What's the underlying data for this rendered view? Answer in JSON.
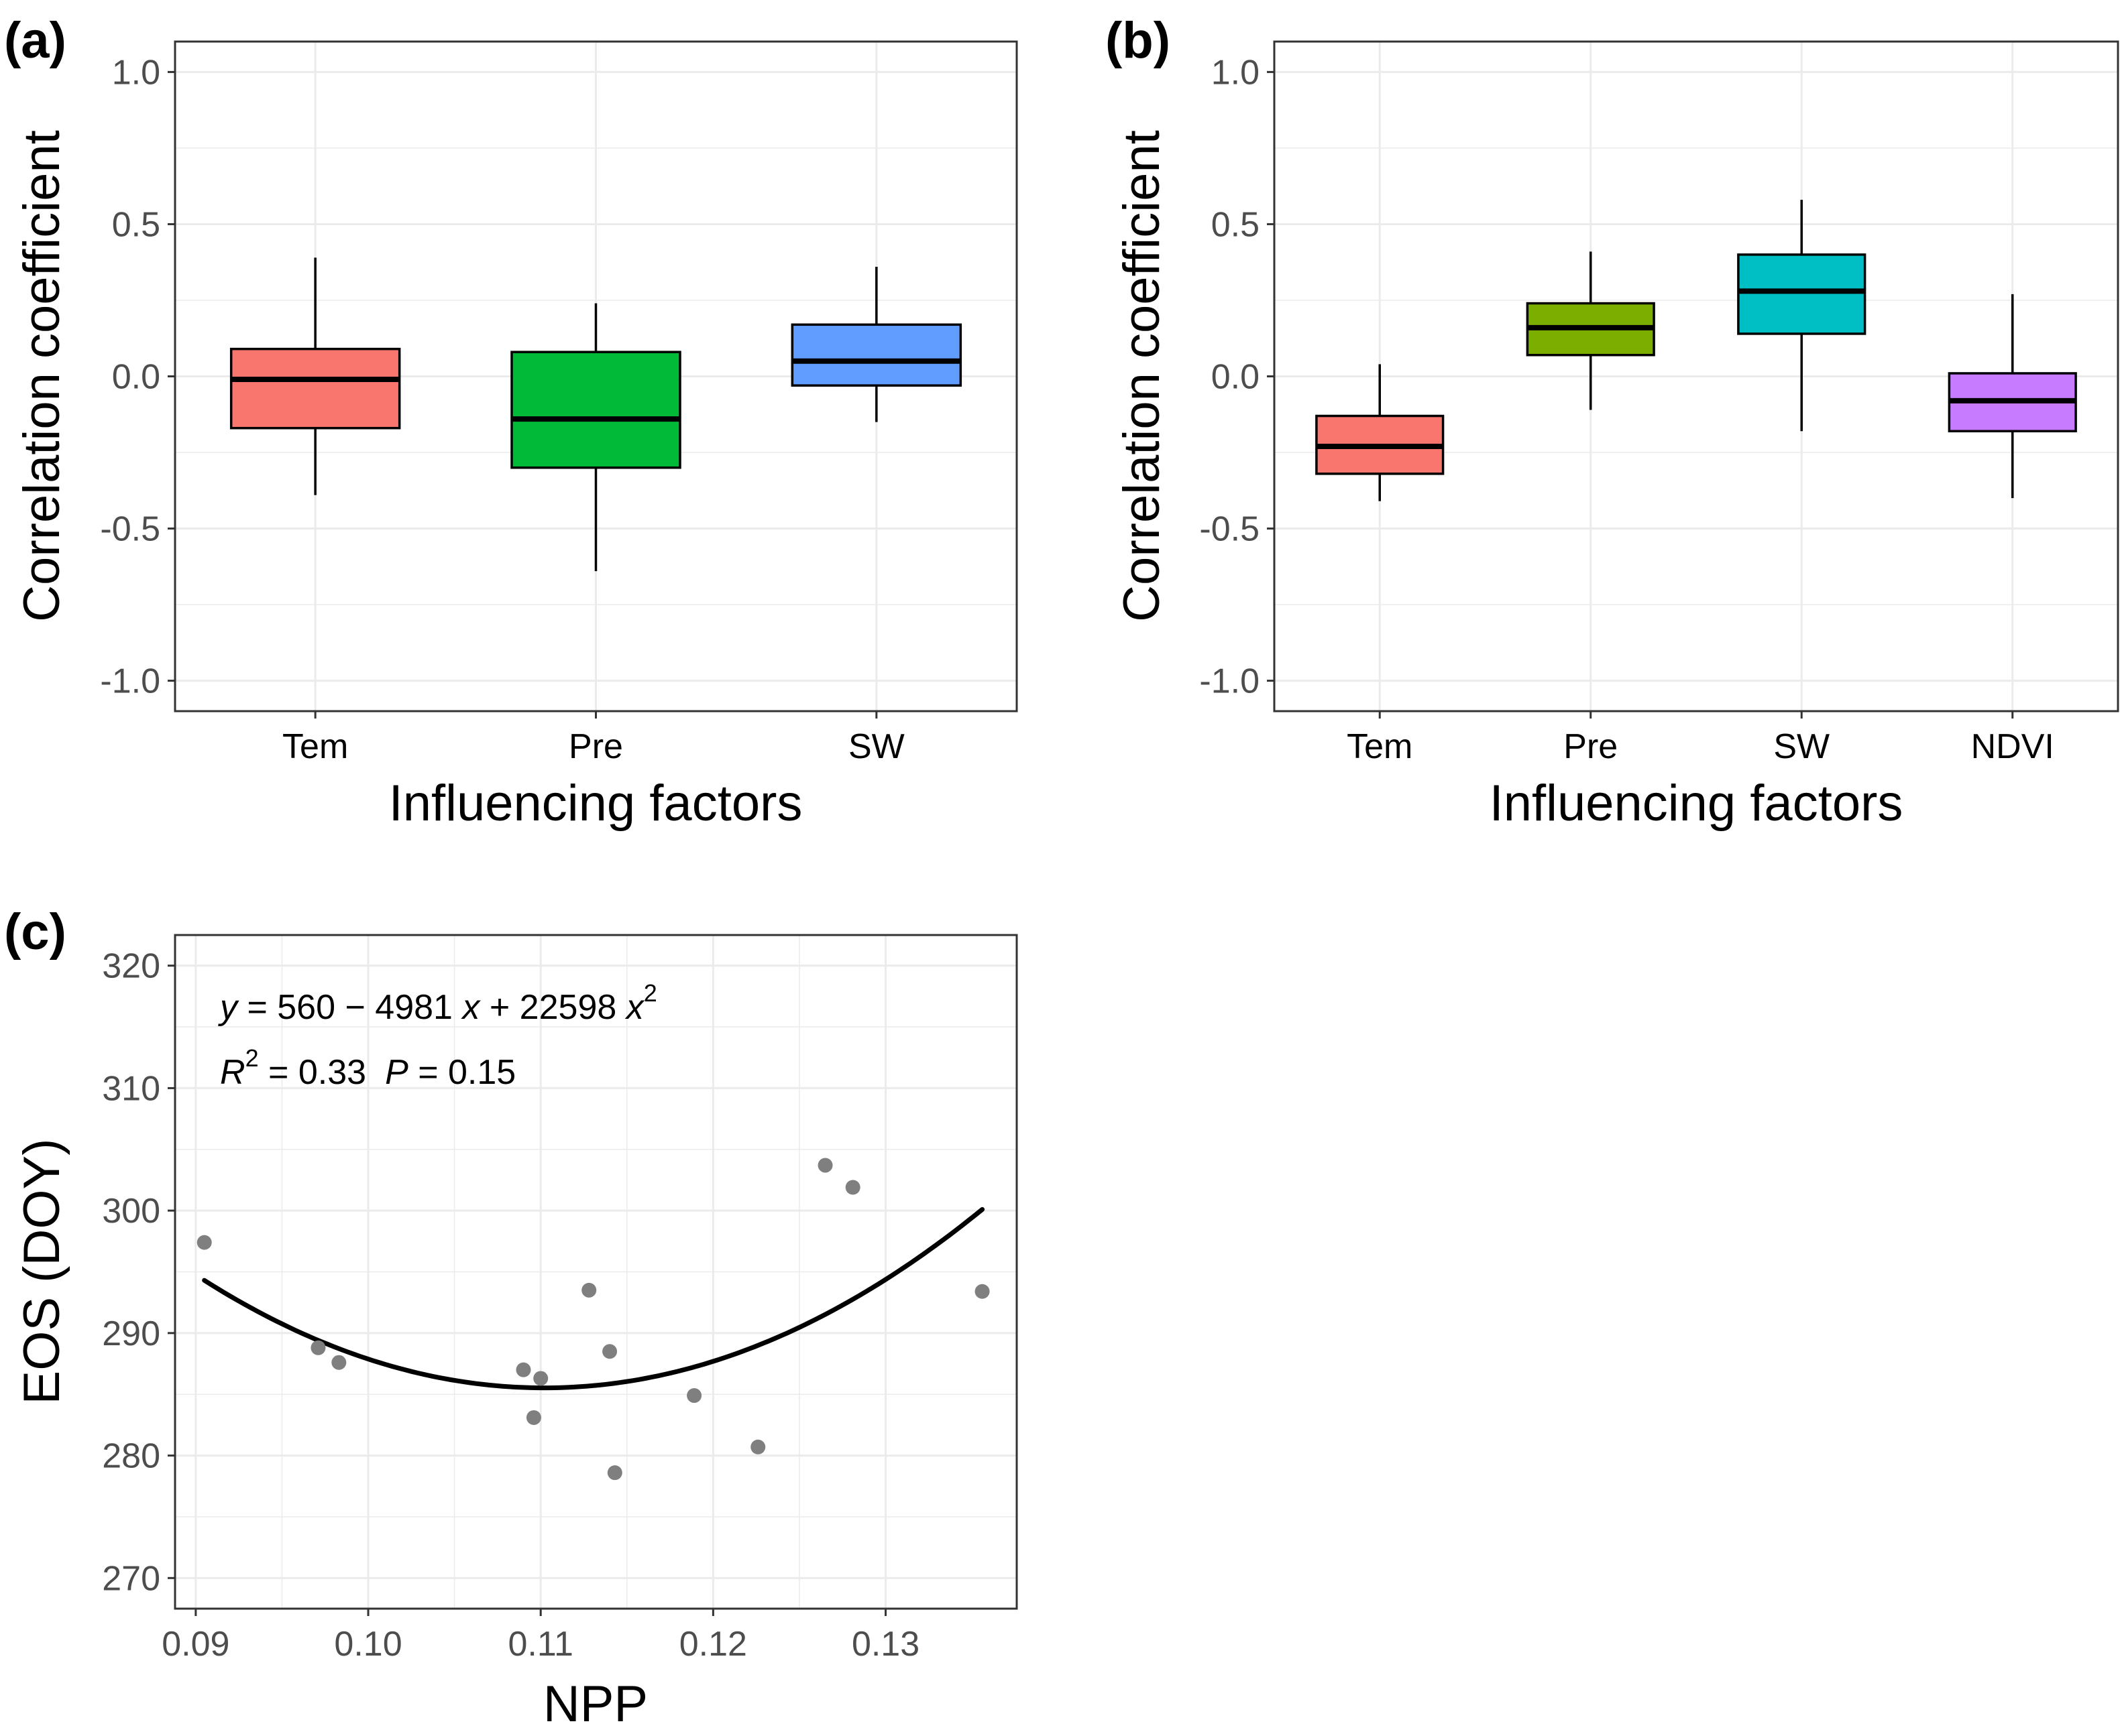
{
  "colors": {
    "grid": "#ebebeb",
    "frame": "#333333",
    "points": "#7f7f7f",
    "fit_line": "#000000"
  },
  "chart_data": [
    {
      "panel_label": "(a)",
      "type": "box",
      "title": "",
      "xlabel": "Influencing factors",
      "ylabel": "Correlation coefficient",
      "ylim": [
        -1.1,
        1.1
      ],
      "yticks": [
        -1.0,
        -0.5,
        0.0,
        0.5,
        1.0
      ],
      "ytick_labels": [
        "-1.0",
        "-0.5",
        "0.0",
        "0.5",
        "1.0"
      ],
      "categories": [
        "Tem",
        "Pre",
        "SW"
      ],
      "boxes": [
        {
          "category": "Tem",
          "min": -0.39,
          "q1": -0.17,
          "median": -0.01,
          "q3": 0.09,
          "max": 0.39,
          "color": "#f8766d"
        },
        {
          "category": "Pre",
          "min": -0.64,
          "q1": -0.3,
          "median": -0.14,
          "q3": 0.08,
          "max": 0.24,
          "color": "#00ba38"
        },
        {
          "category": "SW",
          "min": -0.15,
          "q1": -0.03,
          "median": 0.05,
          "q3": 0.17,
          "max": 0.36,
          "color": "#619cff"
        }
      ]
    },
    {
      "panel_label": "(b)",
      "type": "box",
      "title": "",
      "xlabel": "Influencing factors",
      "ylabel": "Correlation coefficient",
      "ylim": [
        -1.1,
        1.1
      ],
      "yticks": [
        -1.0,
        -0.5,
        0.0,
        0.5,
        1.0
      ],
      "ytick_labels": [
        "-1.0",
        "-0.5",
        "0.0",
        "0.5",
        "1.0"
      ],
      "categories": [
        "Tem",
        "Pre",
        "SW",
        "NDVI"
      ],
      "boxes": [
        {
          "category": "Tem",
          "min": -0.41,
          "q1": -0.32,
          "median": -0.23,
          "q3": -0.13,
          "max": 0.04,
          "color": "#f8766d"
        },
        {
          "category": "Pre",
          "min": -0.11,
          "q1": 0.07,
          "median": 0.16,
          "q3": 0.24,
          "max": 0.41,
          "color": "#7cae00"
        },
        {
          "category": "SW",
          "min": -0.18,
          "q1": 0.14,
          "median": 0.28,
          "q3": 0.4,
          "max": 0.58,
          "color": "#00bfc4"
        },
        {
          "category": "NDVI",
          "min": -0.4,
          "q1": -0.18,
          "median": -0.08,
          "q3": 0.01,
          "max": 0.27,
          "color": "#c77cff"
        }
      ]
    },
    {
      "panel_label": "(c)",
      "type": "scatter",
      "title": "",
      "xlabel": "NPP",
      "ylabel": "EOS (DOY)",
      "xlim": [
        0.0888,
        0.1376
      ],
      "ylim": [
        267.5,
        322.5
      ],
      "xticks": [
        0.09,
        0.1,
        0.11,
        0.12,
        0.13
      ],
      "xtick_labels": [
        "0.09",
        "0.10",
        "0.11",
        "0.12",
        "0.13"
      ],
      "yticks": [
        270,
        280,
        290,
        300,
        310,
        320
      ],
      "ytick_labels": [
        "270",
        "280",
        "290",
        "300",
        "310",
        "320"
      ],
      "points": [
        {
          "x": 0.0905,
          "y": 297.4
        },
        {
          "x": 0.0971,
          "y": 288.8
        },
        {
          "x": 0.0983,
          "y": 287.6
        },
        {
          "x": 0.109,
          "y": 287.0
        },
        {
          "x": 0.1096,
          "y": 283.1
        },
        {
          "x": 0.11,
          "y": 286.3
        },
        {
          "x": 0.1128,
          "y": 293.5
        },
        {
          "x": 0.114,
          "y": 288.5
        },
        {
          "x": 0.1143,
          "y": 278.6
        },
        {
          "x": 0.1189,
          "y": 284.9
        },
        {
          "x": 0.1226,
          "y": 280.7
        },
        {
          "x": 0.1265,
          "y": 303.7
        },
        {
          "x": 0.1281,
          "y": 301.9
        },
        {
          "x": 0.1356,
          "y": 293.4
        }
      ],
      "fit": {
        "type": "quadratic",
        "coefficients": [
          560,
          -4981,
          22598
        ],
        "x_range": [
          0.0905,
          0.1356
        ]
      },
      "annotations": {
        "equation_lhs": "y",
        "equation_mid": " = 560 − 4981 ",
        "equation_x1": "x",
        "equation_plus": " + 22598 ",
        "equation_x2": "x",
        "equation_power": "2",
        "r2_symbol": "R",
        "r2_power": "2",
        "r2_value": " = 0.33",
        "p_symbol": "P",
        "p_value": " = 0.15"
      }
    }
  ]
}
